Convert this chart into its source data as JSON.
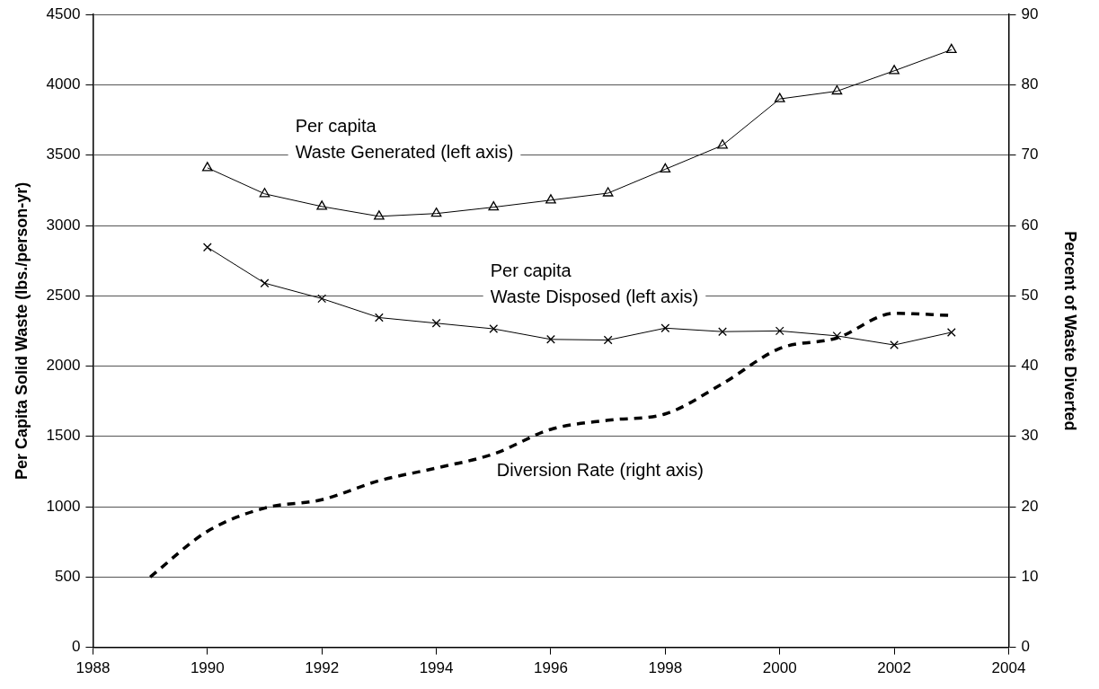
{
  "chart_data": {
    "type": "line",
    "ylabel": "Per Capita Solid Waste (lbs./person-yr)",
    "y2label": "Percent of Waste Diverted",
    "xlim": [
      1988,
      2004
    ],
    "xticks": [
      1988,
      1990,
      1992,
      1994,
      1996,
      1998,
      2000,
      2002,
      2004
    ],
    "ylim": [
      0,
      4500
    ],
    "yticks": [
      0,
      500,
      1000,
      1500,
      2000,
      2500,
      3000,
      3500,
      4000,
      4500
    ],
    "y2lim": [
      0,
      90
    ],
    "y2ticks": [
      0,
      10,
      20,
      30,
      40,
      50,
      60,
      70,
      80,
      90
    ],
    "grid": "y",
    "legend": false,
    "series": [
      {
        "name": "Per capita\nWaste Generated (left axis)",
        "color": "#000000",
        "marker": "triangle",
        "line_style": "solid",
        "x": [
          1990,
          1991,
          1992,
          1993,
          1994,
          1995,
          1996,
          1997,
          1998,
          1999,
          2000,
          2001,
          2002,
          2003
        ],
        "values": [
          3410,
          3225,
          3135,
          3065,
          3085,
          3130,
          3180,
          3230,
          3400,
          3570,
          3900,
          3955,
          4100,
          4250
        ]
      },
      {
        "name": "Per capita\nWaste Disposed (left axis)",
        "color": "#000000",
        "marker": "cross",
        "line_style": "solid",
        "x": [
          1990,
          1991,
          1992,
          1993,
          1994,
          1995,
          1996,
          1997,
          1998,
          1999,
          2000,
          2001,
          2002,
          2003
        ],
        "values": [
          2845,
          2590,
          2480,
          2345,
          2305,
          2265,
          2190,
          2185,
          2270,
          2245,
          2250,
          2215,
          2150,
          2240
        ]
      },
      {
        "name": "Diversion Rate (right axis)",
        "color": "#000000",
        "marker": "none",
        "line_style": "dashed",
        "axis": "y2",
        "x": [
          1989,
          1990,
          1991,
          1992,
          1993,
          1994,
          1995,
          1996,
          1997,
          1998,
          1999,
          2000,
          2001,
          2002,
          2003
        ],
        "values": [
          10,
          16.5,
          19.8,
          21,
          23.7,
          25.5,
          27.5,
          31,
          32.3,
          33.2,
          37.5,
          42.5,
          44,
          47.5,
          47.2
        ]
      }
    ]
  }
}
